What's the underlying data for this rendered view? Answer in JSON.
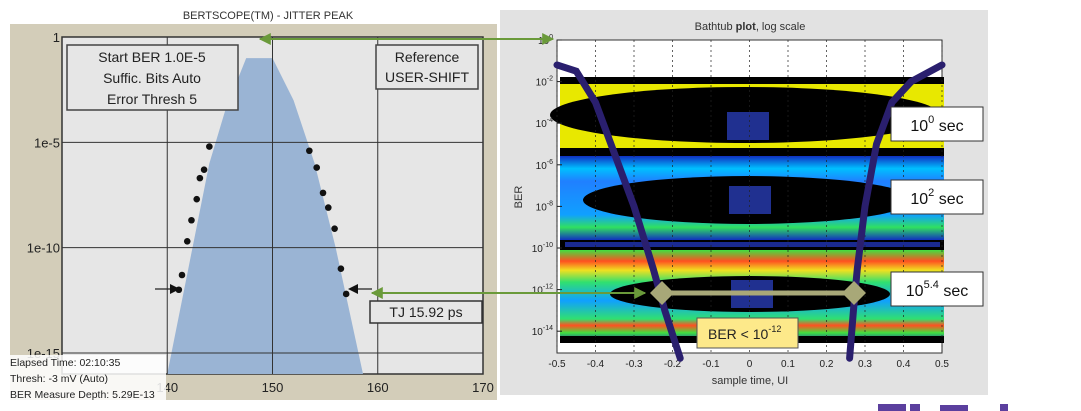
{
  "chart_data": [
    {
      "type": "scatter",
      "title": "BERTSCOPE(TM) - JITTER PEAK",
      "xlabel": "",
      "ylabel": "",
      "y_scale": "log",
      "xlim": [
        130,
        170
      ],
      "ylim": [
        1e-16,
        1
      ],
      "x_ticks": [
        "140",
        "150",
        "160",
        "170"
      ],
      "x_tick_values": [
        140,
        150,
        160,
        170
      ],
      "y_ticks": [
        "1",
        "1e-5",
        "1e-10",
        "1e-15"
      ],
      "y_tick_exponents": [
        0,
        -5,
        -10,
        -15
      ],
      "grid": true,
      "fill_color": "#9ab4d4",
      "background_color": "#e6e6e6",
      "frame_color": "#d3cdb9",
      "jitter_fill_profile": {
        "x": [
          140,
          142,
          144,
          145.5,
          147.5,
          150,
          152,
          154,
          156,
          158.6
        ],
        "log10_ber": [
          -16,
          -11,
          -6,
          -3.5,
          -1,
          -1,
          -3,
          -6,
          -10,
          -16
        ]
      },
      "points_left": {
        "x": [
          144.0,
          143.5,
          143.1,
          142.8,
          142.3,
          141.9,
          141.4,
          141.1
        ],
        "log10_ber": [
          -5.2,
          -6.3,
          -6.7,
          -7.7,
          -8.7,
          -9.7,
          -11.3,
          -12.0
        ]
      },
      "points_right": {
        "x": [
          153.5,
          154.2,
          154.8,
          155.3,
          155.9,
          156.5,
          157.0
        ],
        "log10_ber": [
          -5.4,
          -6.2,
          -7.4,
          -8.1,
          -9.1,
          -11.0,
          -12.2
        ]
      },
      "settings_box": [
        "Start BER 1.0E-5",
        "Suffic. Bits Auto",
        "Error Thresh 5"
      ],
      "reference_box": [
        "Reference",
        "USER-SHIFT"
      ],
      "tj_label": "TJ 15.92 ps",
      "stats": [
        "Elapsed Time:  02:10:35",
        "Thresh:  -3 mV (Auto)",
        "BER Measure Depth: 5.29E-13"
      ]
    },
    {
      "type": "heatmap",
      "title_prefix": "Bathtub ",
      "title_bold": "plot",
      "title_suffix": ", log scale",
      "xlabel": "sample time, UI",
      "ylabel": "BER",
      "y_scale": "log",
      "xlim": [
        -0.5,
        0.5
      ],
      "ylim": [
        3.2e-16,
        1
      ],
      "x_ticks": [
        "-0.5",
        "-0.4",
        "-0.3",
        "-0.2",
        "-0.1",
        "0",
        "0.1",
        "0.2",
        "0.3",
        "0.4",
        "0.5"
      ],
      "y_tick_exponents": [
        "0",
        "-2",
        "-4",
        "-6",
        "-8",
        "-10",
        "-12",
        "-14"
      ],
      "grid": true,
      "curve_color": "#2a1f6e",
      "bathtub_left": {
        "x": [
          -0.5,
          -0.45,
          -0.4,
          -0.35,
          -0.3,
          -0.25,
          -0.22,
          -0.18
        ],
        "log10_ber": [
          -1.2,
          -1.5,
          -3,
          -5.5,
          -8,
          -11,
          -13,
          -15.3
        ]
      },
      "bathtub_right": {
        "x": [
          0.26,
          0.27,
          0.28,
          0.3,
          0.33,
          0.37,
          0.42,
          0.5
        ],
        "log10_ber": [
          -15.3,
          -13,
          -11,
          -8,
          -5,
          -3,
          -2,
          -1.2
        ]
      },
      "bands": [
        {
          "label_base": "10",
          "label_exp": "0",
          "label_unit": " sec"
        },
        {
          "label_base": "10",
          "label_exp": "2",
          "label_unit": " sec"
        },
        {
          "label_base": "10",
          "label_exp": "5.4",
          "label_unit": " sec"
        }
      ],
      "ber_box": {
        "prefix": "BER < 10",
        "exp": "-12"
      },
      "opening_at_1e-12": {
        "x": [
          -0.22,
          0.28
        ]
      }
    }
  ],
  "colors": {
    "arrow": "#6a9a3a",
    "diamond": "#a8a878",
    "ber_box": "#fde98a",
    "logo": "#5b3f9e"
  }
}
